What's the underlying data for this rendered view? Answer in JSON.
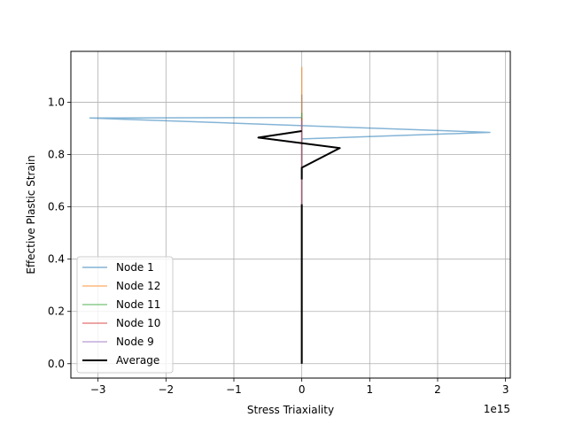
{
  "chart_data": {
    "type": "line",
    "title": "",
    "xlabel": "Stress Triaxiality",
    "ylabel": "Effective Plastic Strain",
    "x_offset_label": "1e15",
    "x_scale": 1000000000000000.0,
    "xlim": [
      -3400000000000000.0,
      3070000000000000.0
    ],
    "ylim": [
      -0.055,
      1.195
    ],
    "x_ticks": [
      -3000000000000000.0,
      -2000000000000000.0,
      -1000000000000000.0,
      0,
      1000000000000000.0,
      2000000000000000.0,
      3000000000000000.0
    ],
    "x_tick_labels": [
      "−3",
      "−2",
      "−1",
      "0",
      "1",
      "2",
      "3"
    ],
    "y_ticks": [
      0.0,
      0.2,
      0.4,
      0.6,
      0.8,
      1.0
    ],
    "y_tick_labels": [
      "0.0",
      "0.2",
      "0.4",
      "0.6",
      "0.8",
      "1.0"
    ],
    "grid": true,
    "legend_position": "lower-left",
    "series": [
      {
        "name": "Node 1",
        "color": "#1f77b4",
        "x": [
          0,
          0,
          2770000000000000.0,
          -3120000000000000.0,
          0,
          0
        ],
        "y": [
          0.0,
          0.86,
          0.885,
          0.94,
          0.942,
          1.03
        ]
      },
      {
        "name": "Node 12",
        "color": "#ff7f0e",
        "x": [
          0,
          0
        ],
        "y": [
          0.0,
          1.135
        ]
      },
      {
        "name": "Node 11",
        "color": "#2ca02c",
        "x": [
          0,
          0
        ],
        "y": [
          0.0,
          0.96
        ]
      },
      {
        "name": "Node 10",
        "color": "#d62728",
        "x": [
          0,
          0
        ],
        "y": [
          0.0,
          0.94
        ]
      },
      {
        "name": "Node 9",
        "color": "#9467bd",
        "x": [
          0,
          0
        ],
        "y": [
          0.0,
          0.93
        ]
      },
      {
        "name": "Average",
        "color": "#000000",
        "x": [
          0,
          0,
          null,
          0,
          0,
          560000000000000.0,
          -640000000000000.0,
          0
        ],
        "y": [
          0.0,
          0.61,
          null,
          0.705,
          0.75,
          0.825,
          0.865,
          0.89
        ]
      }
    ]
  }
}
